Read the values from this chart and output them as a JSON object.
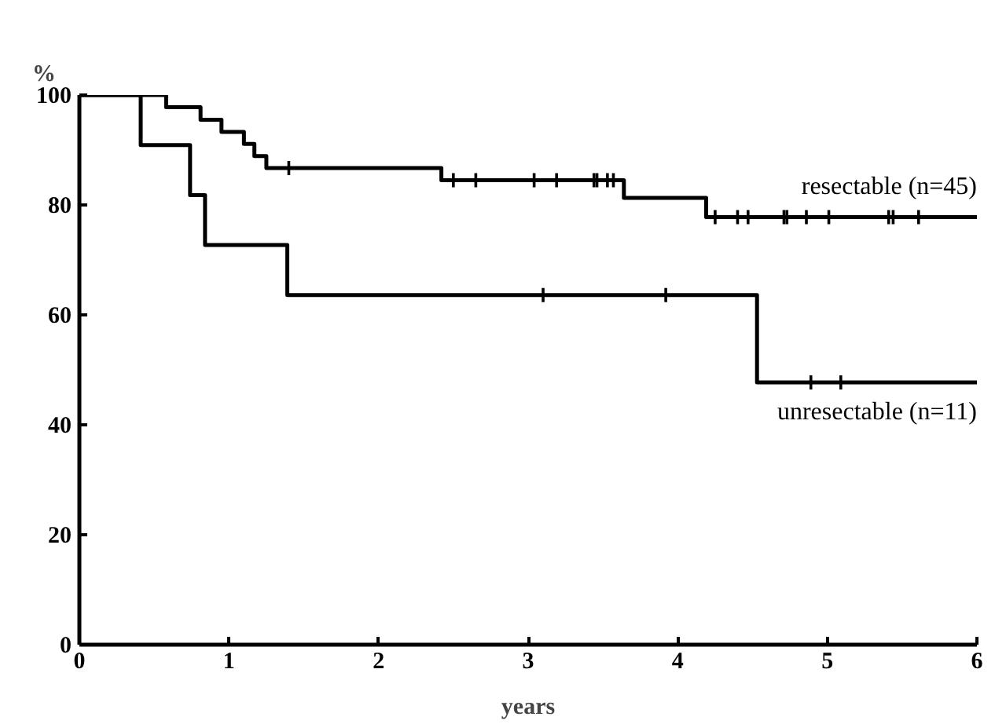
{
  "chart_data": {
    "type": "step",
    "xlabel": "years",
    "ylabel": "%",
    "xlim": [
      0,
      6
    ],
    "ylim": [
      0,
      100
    ],
    "xticks": [
      0,
      1,
      2,
      3,
      4,
      5,
      6
    ],
    "yticks": [
      0,
      20,
      40,
      60,
      80,
      100
    ],
    "line_style": "solid",
    "marker": "none",
    "series": [
      {
        "name": "resectable (n=45)",
        "color": "#000000",
        "x": [
          0,
          0.58,
          0.81,
          0.95,
          1.1,
          1.17,
          1.25,
          2.42,
          3.64,
          4.19,
          6
        ],
        "values": [
          100,
          97.8,
          95.5,
          93.3,
          91.1,
          88.9,
          86.7,
          84.5,
          81.3,
          77.8,
          77.8
        ]
      },
      {
        "name": "unresectable (n=11)",
        "color": "#000000",
        "x": [
          0,
          0.41,
          0.74,
          0.84,
          1.39,
          4.53,
          6
        ],
        "values": [
          100,
          90.9,
          81.8,
          72.7,
          63.6,
          47.7,
          47.7
        ]
      },
      {
        "type": "scatter",
        "marker": "cross",
        "color": "#000000",
        "x": [
          1.4,
          2.5,
          2.65,
          3.04,
          3.19,
          3.44,
          3.46,
          3.53,
          3.57,
          4.25,
          4.4,
          4.47,
          4.71,
          4.73,
          4.86,
          5.01,
          5.41,
          5.44,
          5.61
        ],
        "values": [
          86.7,
          84.5,
          84.5,
          84.5,
          84.5,
          84.5,
          84.5,
          84.5,
          84.5,
          77.8,
          77.8,
          77.8,
          77.8,
          77.8,
          77.8,
          77.8,
          77.8,
          77.8,
          77.8
        ]
      },
      {
        "type": "scatter",
        "marker": "cross",
        "color": "#000000",
        "x": [
          3.1,
          3.92,
          4.89,
          5.09
        ],
        "values": [
          63.6,
          63.6,
          47.7,
          47.7
        ]
      }
    ]
  }
}
